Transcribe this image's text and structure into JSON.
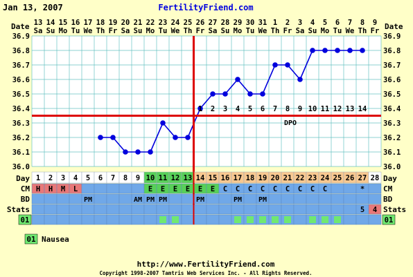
{
  "header": {
    "date": "Jan 13, 2007",
    "site": "FertilityFriend.com"
  },
  "footer": {
    "url": "http://www.FertilityFriend.com",
    "copyright": "Copyright 1998-2007 Tamtris Web Services Inc. - All Rights Reserved."
  },
  "labels": {
    "date": "Date",
    "day": "Day",
    "cm": "CM",
    "bd": "BD",
    "stats": "Stats",
    "code": "01",
    "dpo": "DPO"
  },
  "legend": {
    "code": "01",
    "text": "Nausea"
  },
  "colors": {
    "background": "#ffffc8",
    "plot_bg": "#ffffff",
    "grid": "#66c2c2",
    "line": "#0000dd",
    "crosshair": "#dd0000",
    "menses_cell": "#e87878",
    "fertile_cell": "#58d058",
    "luteal_header": "#f8c890",
    "row_bg": "#70a8e8",
    "code_cell": "#70e870",
    "header_blue": "#0000dd"
  },
  "chart_data": {
    "type": "line",
    "dates": [
      "13",
      "14",
      "15",
      "16",
      "17",
      "18",
      "19",
      "20",
      "21",
      "22",
      "23",
      "24",
      "25",
      "26",
      "27",
      "28",
      "29",
      "30",
      "31",
      "1",
      "2",
      "3",
      "4",
      "5",
      "6",
      "7",
      "8",
      "9"
    ],
    "weekdays": [
      "Sa",
      "Su",
      "Mo",
      "Tu",
      "We",
      "Th",
      "Fr",
      "Sa",
      "Su",
      "Mo",
      "Tu",
      "We",
      "Th",
      "Fr",
      "Sa",
      "Su",
      "Mo",
      "Tu",
      "We",
      "Th",
      "Fr",
      "Sa",
      "Su",
      "Mo",
      "Tu",
      "We",
      "Th",
      "Fr"
    ],
    "cycle_days": [
      "1",
      "2",
      "3",
      "4",
      "5",
      "6",
      "7",
      "8",
      "9",
      "10",
      "11",
      "12",
      "13",
      "14",
      "15",
      "16",
      "17",
      "18",
      "19",
      "20",
      "21",
      "22",
      "23",
      "24",
      "25",
      "26",
      "27",
      "28"
    ],
    "temperatures": [
      null,
      null,
      null,
      null,
      null,
      36.2,
      36.2,
      36.1,
      36.1,
      36.1,
      36.3,
      36.2,
      36.2,
      36.4,
      36.5,
      36.5,
      36.6,
      36.5,
      36.5,
      36.7,
      36.7,
      36.6,
      36.8,
      36.8,
      36.8,
      36.8,
      36.8,
      null
    ],
    "ylim": [
      36.0,
      36.9
    ],
    "y_ticks": [
      "36.0",
      "36.1",
      "36.2",
      "36.3",
      "36.4",
      "36.5",
      "36.6",
      "36.7",
      "36.8",
      "36.9"
    ],
    "coverline": 36.35,
    "ovulation_day": 13,
    "dpo": [
      "",
      "",
      "",
      "",
      "",
      "",
      "",
      "",
      "",
      "",
      "",
      "",
      "",
      "1",
      "2",
      "3",
      "4",
      "5",
      "6",
      "7",
      "8",
      "9",
      "10",
      "11",
      "12",
      "13",
      "14",
      ""
    ],
    "cm": [
      "H",
      "H",
      "M",
      "L",
      "",
      "",
      "",
      "",
      "",
      "E",
      "E",
      "E",
      "E",
      "E",
      "E",
      "C",
      "C",
      "C",
      "C",
      "C",
      "C",
      "C",
      "C",
      "C",
      "",
      "",
      "*",
      ""
    ],
    "bd": [
      "",
      "",
      "",
      "",
      "PM",
      "",
      "",
      "",
      "AM",
      "PM",
      "PM",
      "",
      "",
      "PM",
      "",
      "",
      "PM",
      "",
      "PM",
      "",
      "",
      "",
      "",
      "",
      "",
      "",
      "",
      ""
    ],
    "stats": [
      "",
      "",
      "",
      "",
      "",
      "",
      "",
      "",
      "",
      "",
      "",
      "",
      "",
      "",
      "",
      "",
      "",
      "",
      "",
      "",
      "",
      "",
      "",
      "",
      "",
      "",
      "5",
      "4"
    ],
    "code01": [
      false,
      false,
      false,
      false,
      false,
      false,
      false,
      false,
      false,
      false,
      true,
      true,
      false,
      false,
      false,
      false,
      true,
      true,
      true,
      true,
      true,
      false,
      true,
      true,
      true,
      false,
      false,
      false
    ],
    "grid": true
  }
}
